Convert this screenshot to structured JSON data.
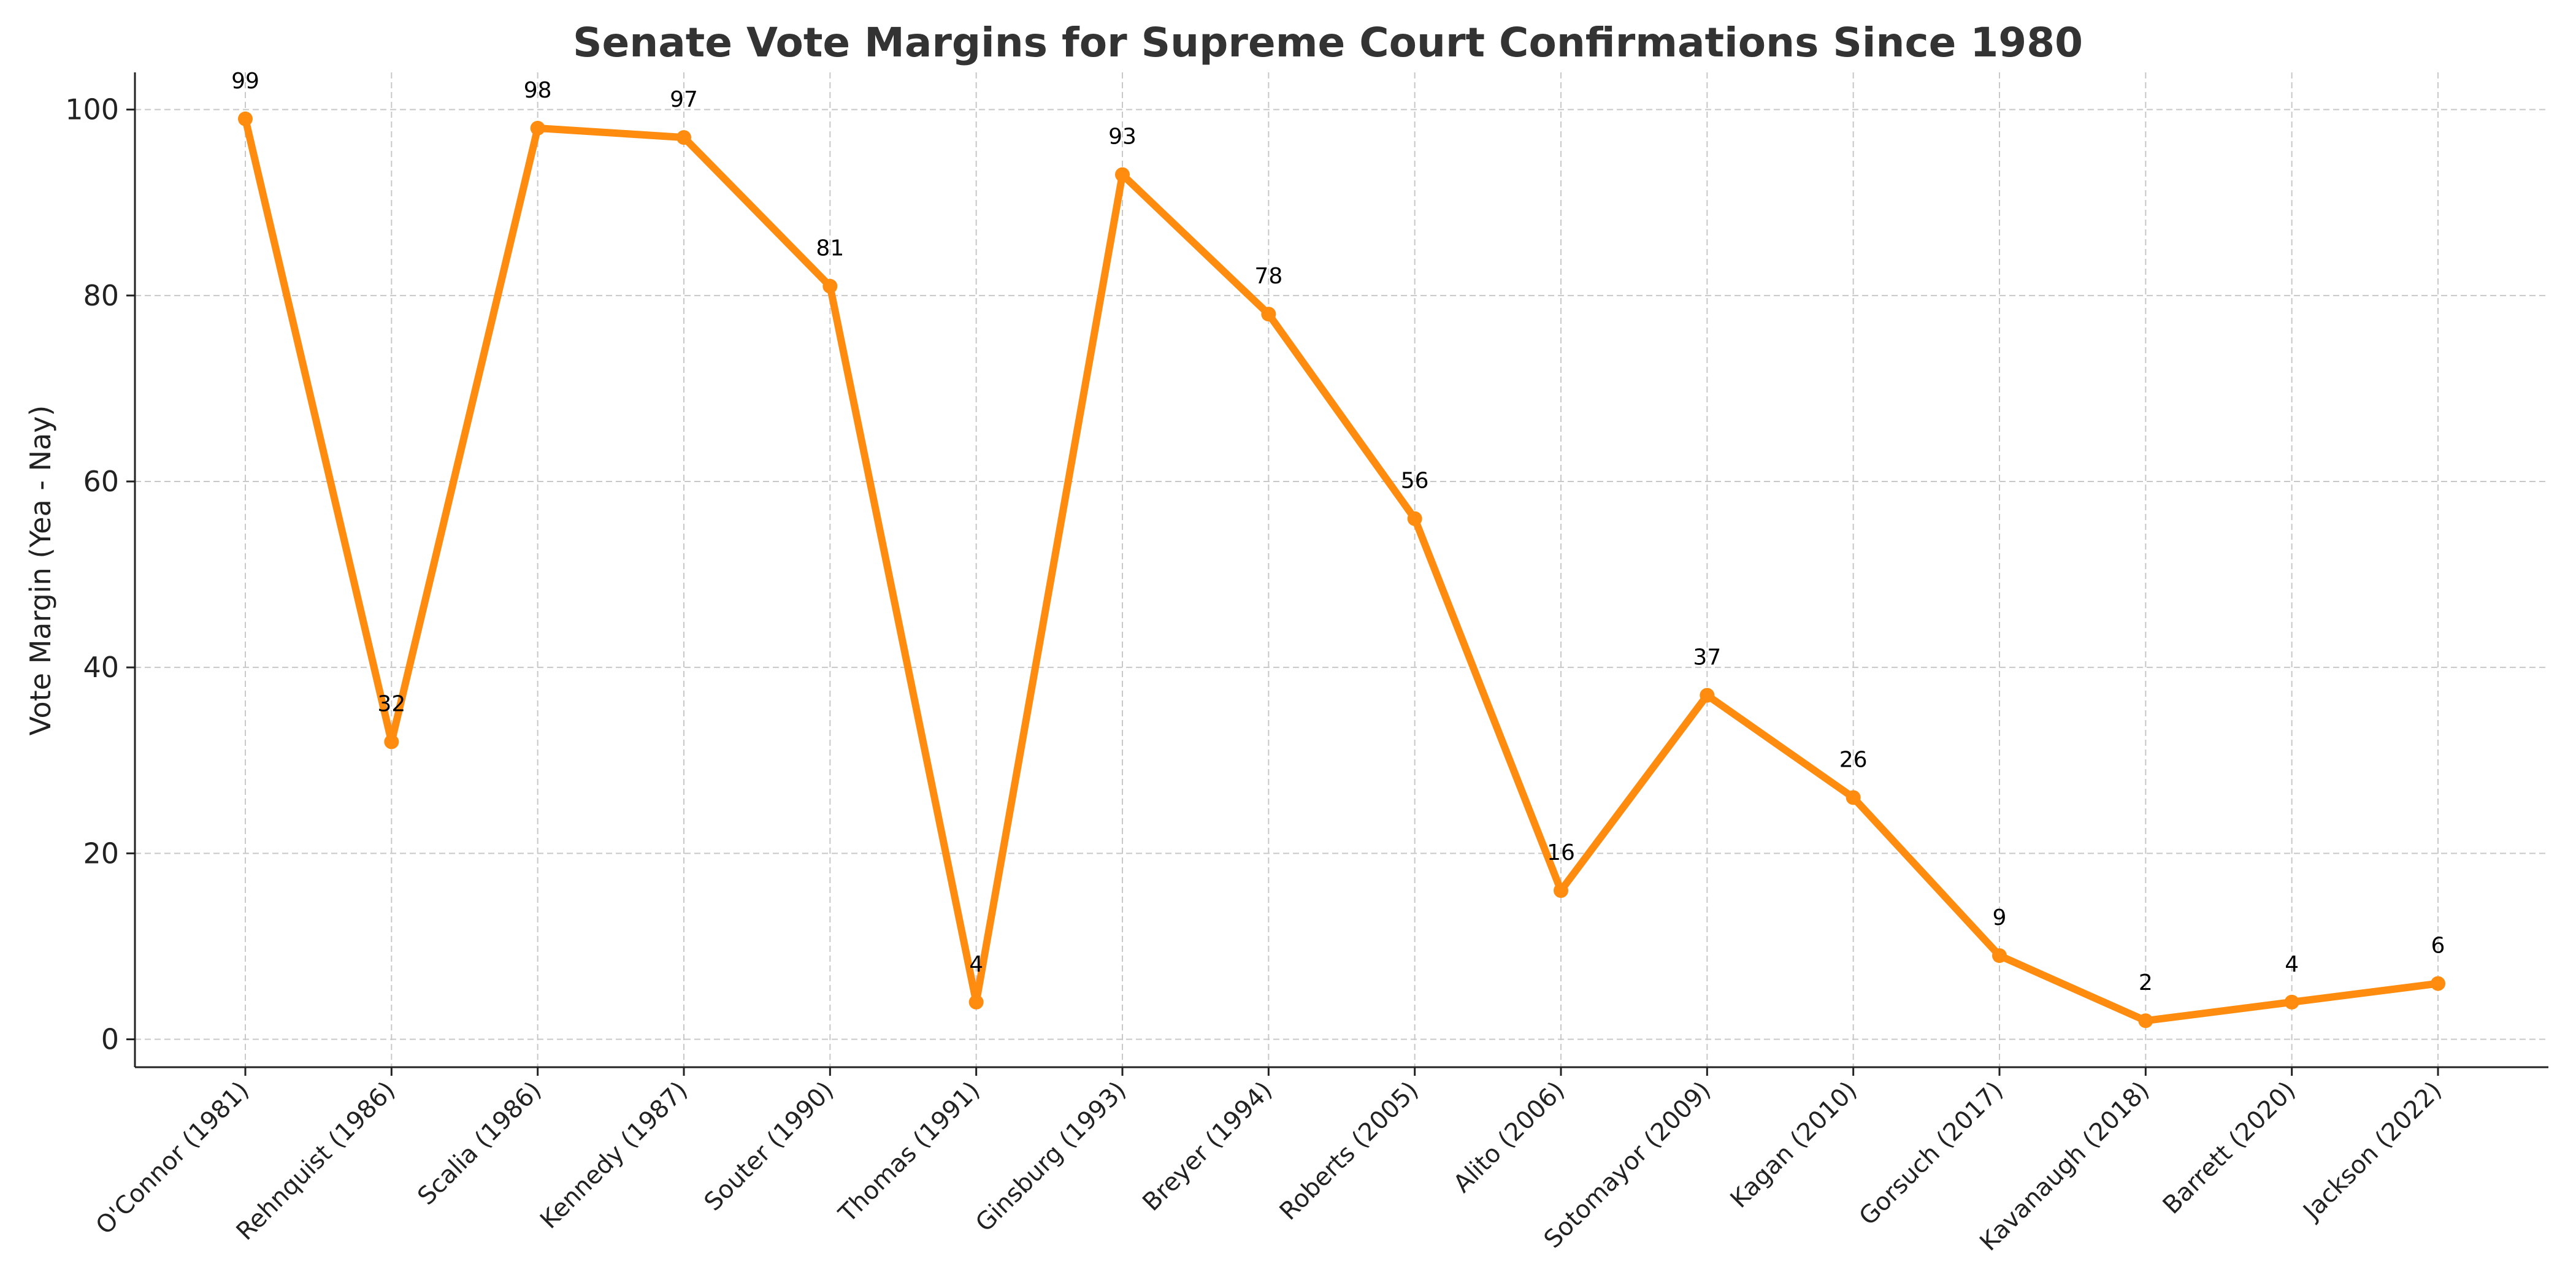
{
  "chart_data": {
    "type": "line",
    "title": "Senate Vote Margins for Supreme Court Confirmations Since 1980",
    "xlabel": "",
    "ylabel": "Vote Margin (Yea - Nay)",
    "categories": [
      "O'Connor (1981)",
      "Rehnquist (1986)",
      "Scalia (1986)",
      "Kennedy (1987)",
      "Souter (1990)",
      "Thomas (1991)",
      "Ginsburg (1993)",
      "Breyer (1994)",
      "Roberts (2005)",
      "Alito (2006)",
      "Sotomayor (2009)",
      "Kagan (2010)",
      "Gorsuch (2017)",
      "Kavanaugh (2018)",
      "Barrett (2020)",
      "Jackson (2022)"
    ],
    "series": [
      {
        "values": [
          99,
          32,
          98,
          97,
          81,
          4,
          93,
          78,
          56,
          16,
          37,
          26,
          9,
          2,
          4,
          6
        ]
      }
    ],
    "data_labels": [
      "99",
      "32",
      "98",
      "97",
      "81",
      "4",
      "93",
      "78",
      "56",
      "16",
      "37",
      "26",
      "9",
      "2",
      "4",
      "6"
    ],
    "y_ticks": [
      0,
      20,
      40,
      60,
      80,
      100
    ],
    "y_tick_labels": [
      "0",
      "20",
      "40",
      "60",
      "80",
      "100"
    ],
    "ylim": [
      -3,
      104
    ],
    "grid": true,
    "legend": "none",
    "line_color": "#ff8c0e"
  }
}
